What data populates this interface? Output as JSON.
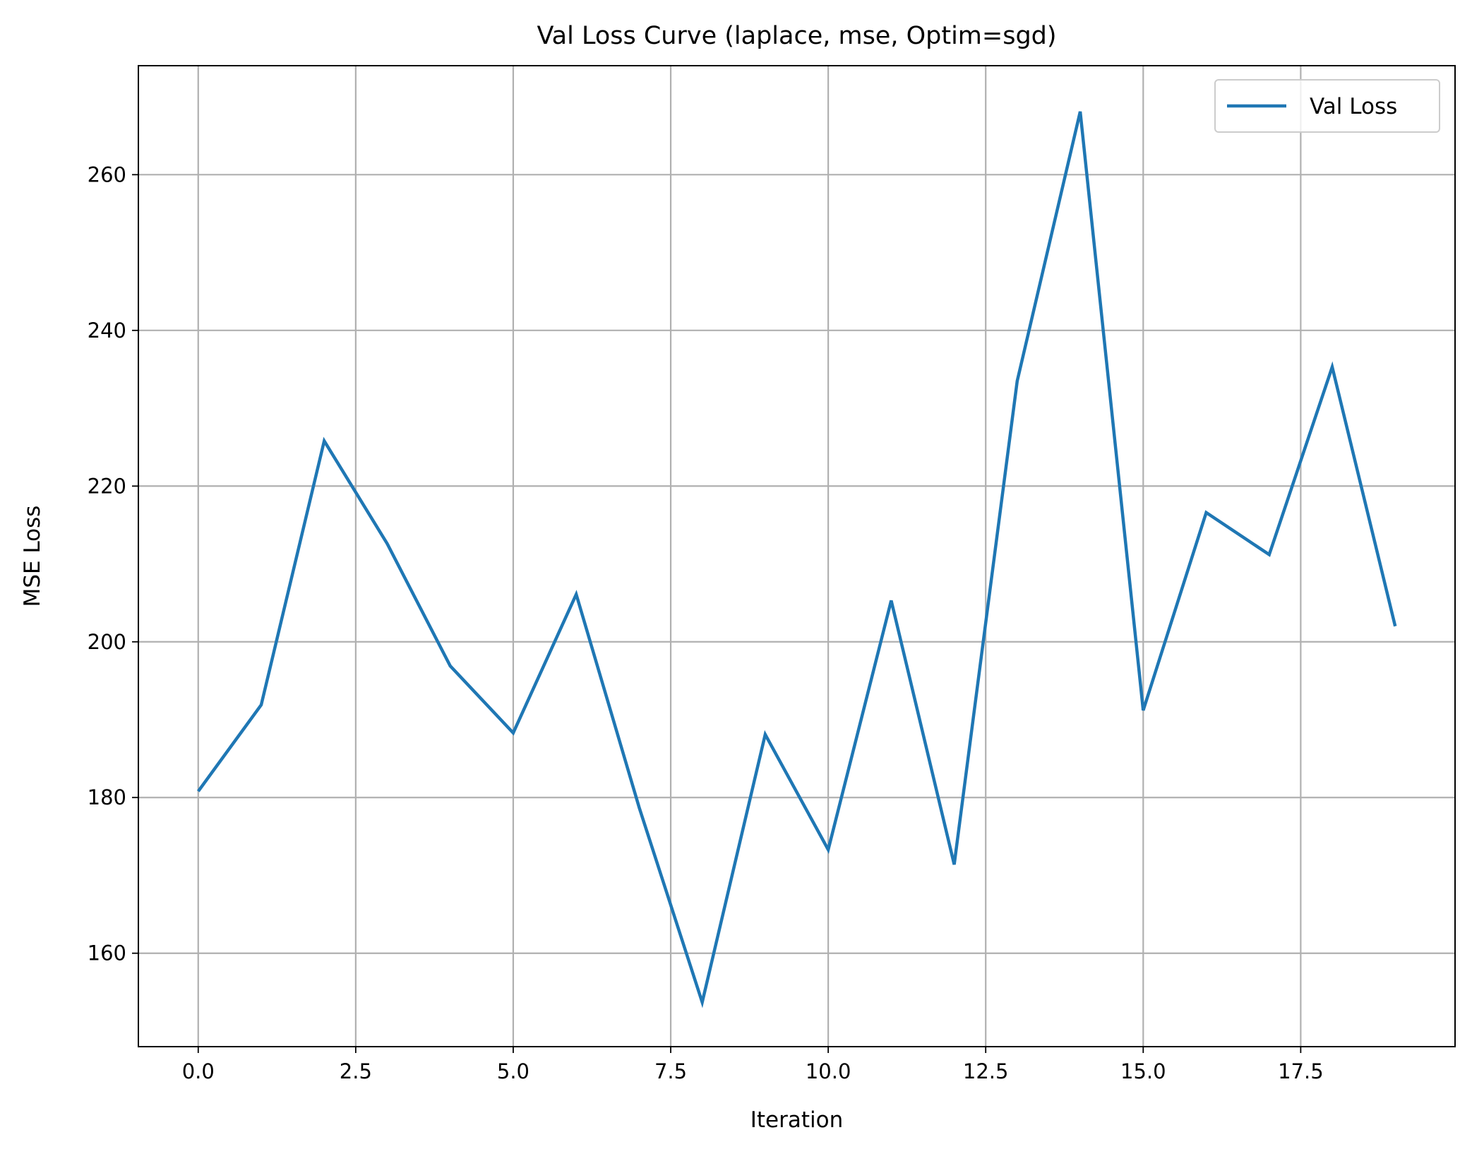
{
  "chart_data": {
    "type": "line",
    "title": "Val Loss Curve (laplace, mse, Optim=sgd)",
    "xlabel": "Iteration",
    "ylabel": "MSE Loss",
    "xlim": [
      -0.95,
      19.95
    ],
    "ylim": [
      148,
      274
    ],
    "xticks": [
      0.0,
      2.5,
      5.0,
      7.5,
      10.0,
      12.5,
      15.0,
      17.5
    ],
    "xtick_labels": [
      "0.0",
      "2.5",
      "5.0",
      "7.5",
      "10.0",
      "12.5",
      "15.0",
      "17.5"
    ],
    "yticks": [
      160,
      180,
      200,
      220,
      240,
      260
    ],
    "ytick_labels": [
      "160",
      "180",
      "200",
      "220",
      "240",
      "260"
    ],
    "grid": true,
    "legend_position": "top-right",
    "series": [
      {
        "name": "Val Loss",
        "color": "#1f77b4",
        "x": [
          0,
          1,
          2,
          3,
          4,
          5,
          6,
          7,
          8,
          9,
          10,
          11,
          12,
          13,
          14,
          15,
          16,
          17,
          18,
          19
        ],
        "values": [
          180.8,
          191.9,
          225.8,
          212.6,
          196.9,
          188.3,
          206.1,
          178.7,
          153.7,
          188.1,
          173.3,
          205.3,
          171.4,
          233.5,
          268.1,
          191.2,
          216.6,
          211.2,
          235.3,
          202.0
        ]
      }
    ]
  }
}
